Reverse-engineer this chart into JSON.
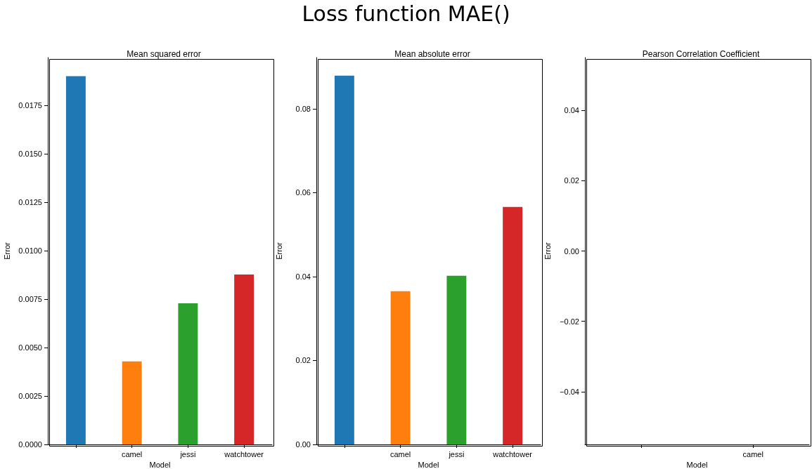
{
  "chart_data": [
    {
      "type": "other",
      "title": "Loss function MAE()"
    },
    {
      "type": "bar",
      "title": "Mean squared error",
      "xlabel": "Model",
      "ylabel": "Error",
      "categories": [
        null,
        "camel",
        "jessi",
        "watchtower"
      ],
      "values": [
        0.019,
        0.00428,
        0.00728,
        0.00877
      ],
      "colors": [
        "#1f77b4",
        "#ff7f0e",
        "#2ca02c",
        "#d62728"
      ],
      "ylim": [
        0,
        0.01996
      ],
      "yticks": [
        {
          "value": 0,
          "label": "0.0000"
        },
        {
          "value": 0.0025,
          "label": "0.0025"
        },
        {
          "value": 0.005,
          "label": "0.0050"
        },
        {
          "value": 0.0075,
          "label": "0.0075"
        },
        {
          "value": 0.01,
          "label": "0.0100"
        },
        {
          "value": 0.0125,
          "label": "0.0125"
        },
        {
          "value": 0.015,
          "label": "0.0150"
        },
        {
          "value": 0.0175,
          "label": "0.0175"
        }
      ],
      "grid": false
    },
    {
      "type": "bar",
      "title": "Mean absolute error",
      "xlabel": "Model",
      "ylabel": "Error",
      "categories": [
        null,
        "camel",
        "jessi",
        "watchtower"
      ],
      "values": [
        0.0879,
        0.0365,
        0.0402,
        0.0566
      ],
      "colors": [
        "#1f77b4",
        "#ff7f0e",
        "#2ca02c",
        "#d62728"
      ],
      "ylim": [
        0,
        0.0922
      ],
      "yticks": [
        {
          "value": 0,
          "label": "0.00"
        },
        {
          "value": 0.02,
          "label": "0.02"
        },
        {
          "value": 0.04,
          "label": "0.04"
        },
        {
          "value": 0.06,
          "label": "0.06"
        },
        {
          "value": 0.08,
          "label": "0.08"
        }
      ],
      "grid": false
    },
    {
      "type": "bar",
      "title": "Pearson Correlation Coefficient",
      "xlabel": "Model",
      "ylabel": "Error",
      "categories": [
        null,
        "camel"
      ],
      "values": [
        null,
        null
      ],
      "ylim": [
        -0.055,
        0.055
      ],
      "yticks": [
        {
          "value": -0.04,
          "label": "−0.04"
        },
        {
          "value": -0.02,
          "label": "−0.02"
        },
        {
          "value": 0,
          "label": "0.00"
        },
        {
          "value": 0.02,
          "label": "0.02"
        },
        {
          "value": 0.04,
          "label": "0.04"
        }
      ],
      "grid": false
    }
  ]
}
